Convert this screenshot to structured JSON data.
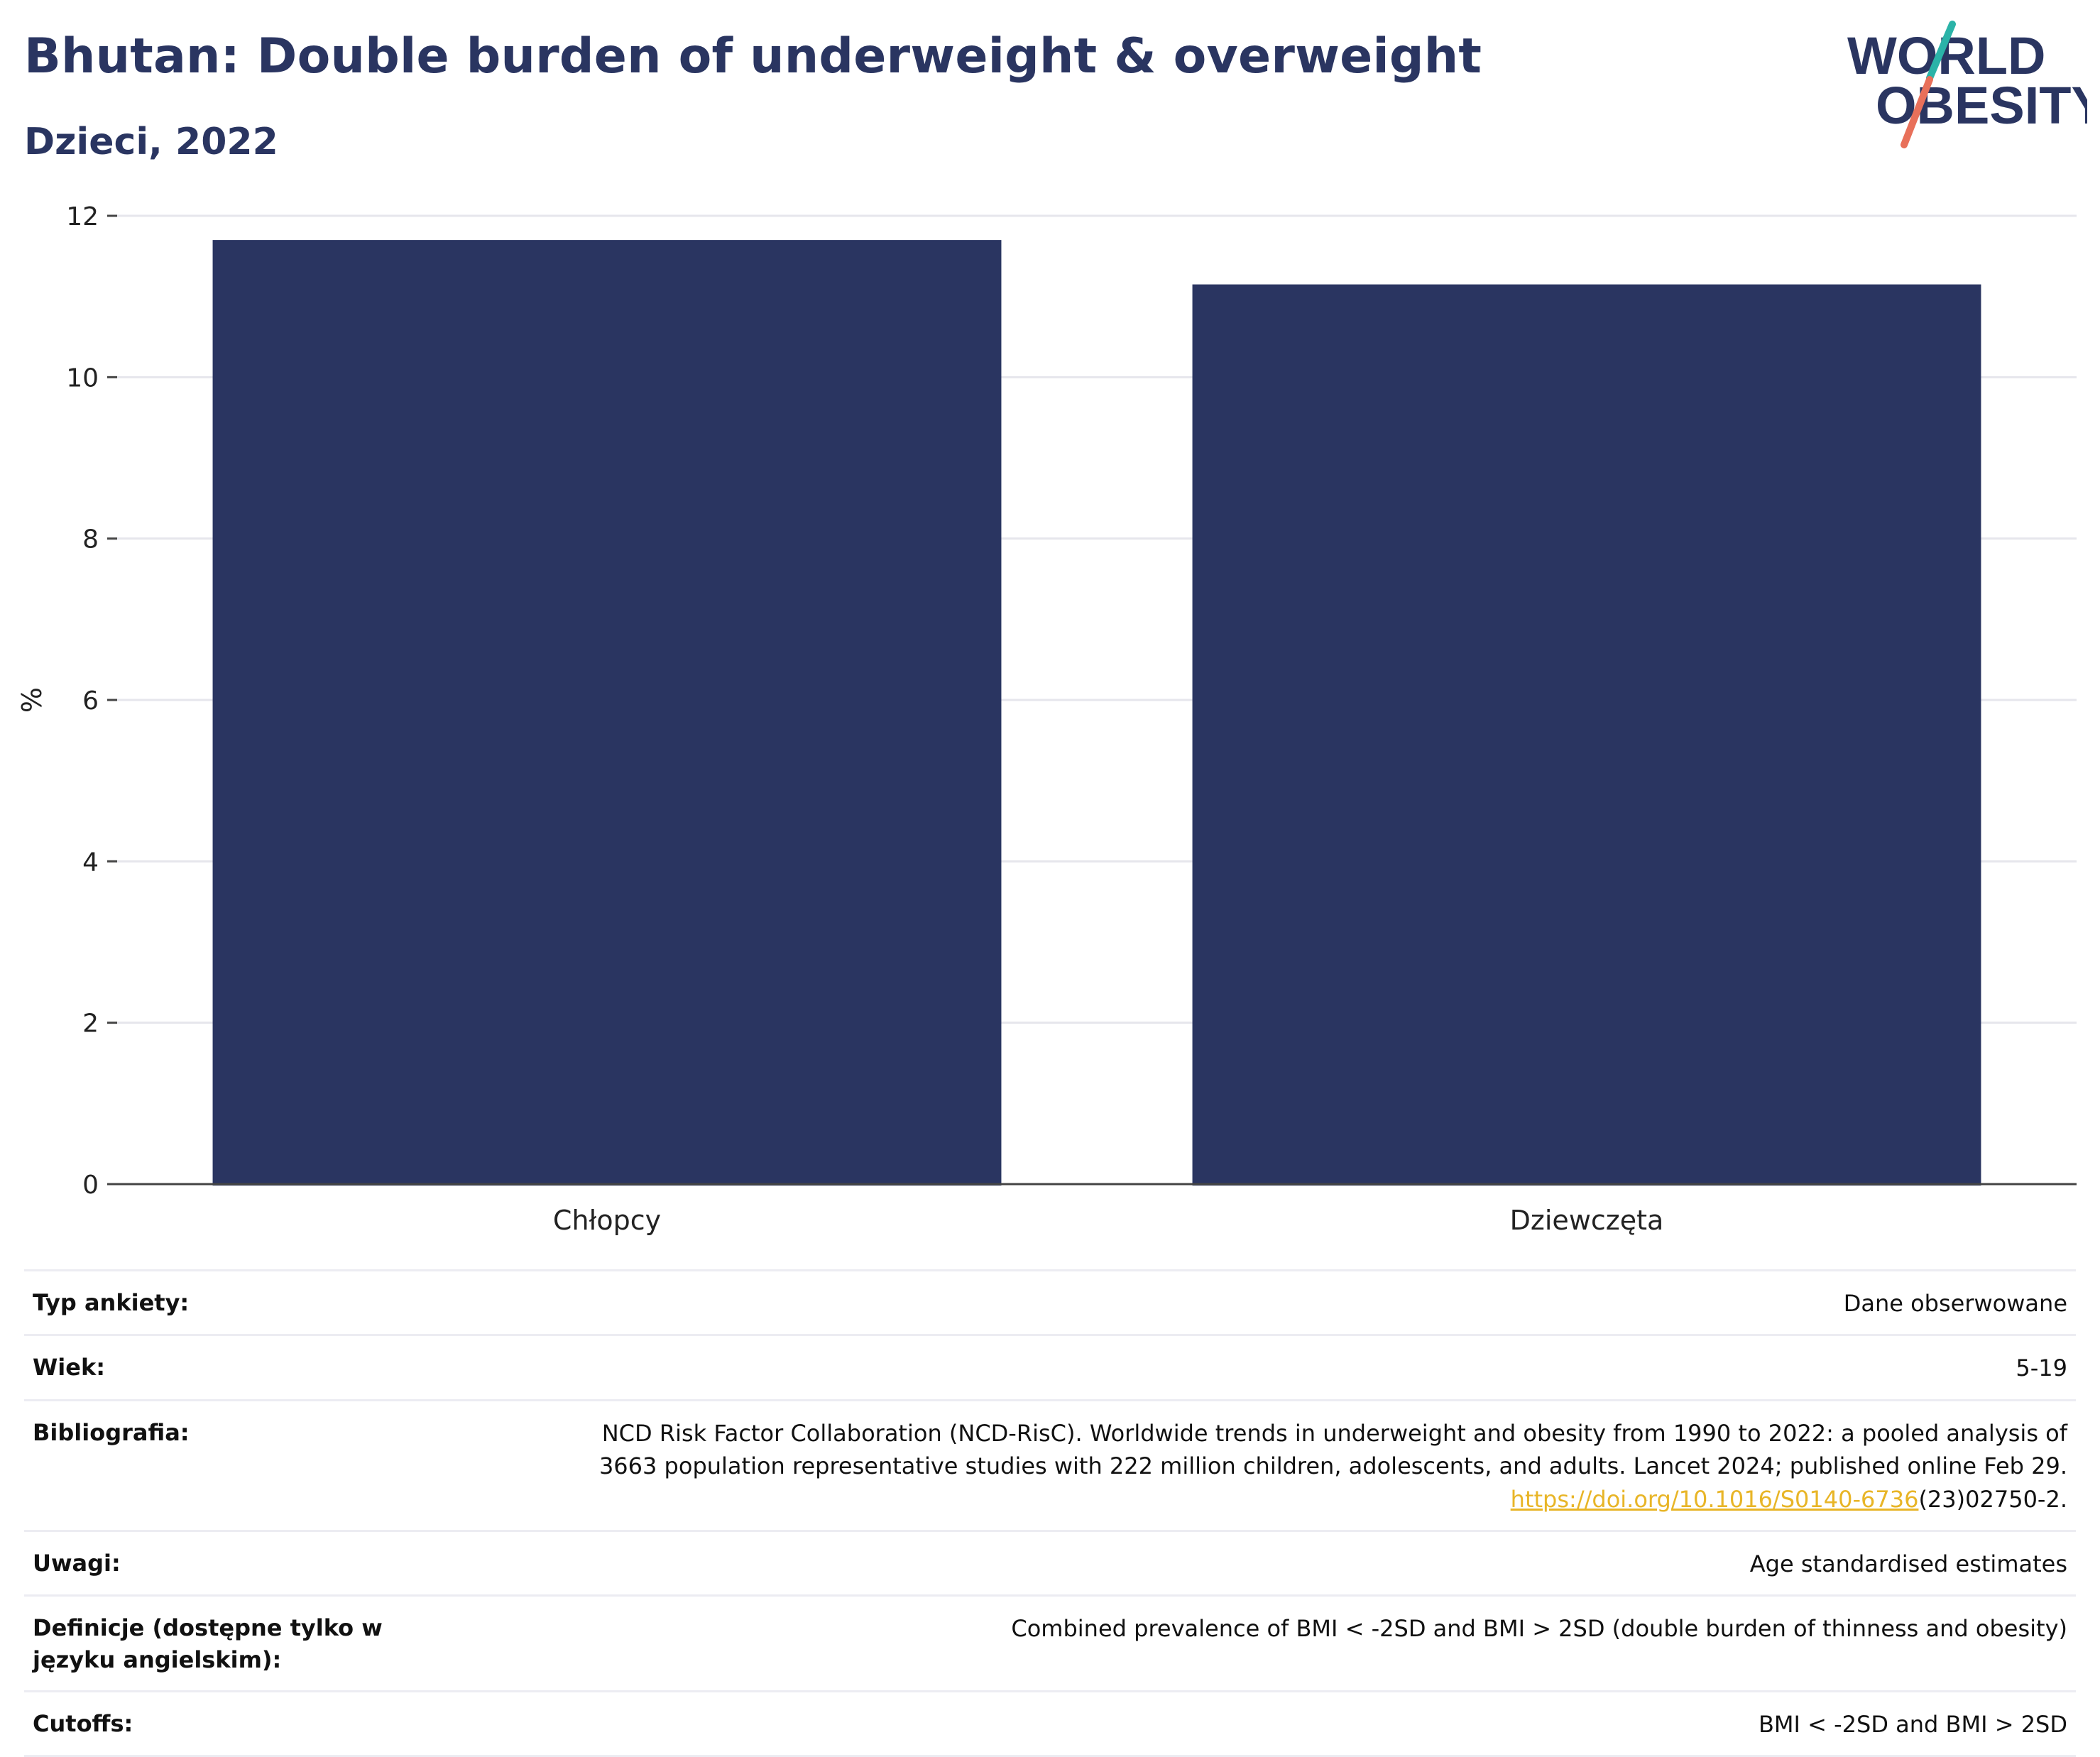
{
  "title": "Bhutan: Double burden of underweight & overweight",
  "subtitle": "Dzieci, 2022",
  "logo": {
    "line1": "WORLD",
    "line2": "OBESITY",
    "colors": {
      "teal": "#2bb3a8",
      "coral": "#e8705a",
      "navy": "#2a3561"
    }
  },
  "chart_data": {
    "type": "bar",
    "categories": [
      "Chłopcy",
      "Dziewczęta"
    ],
    "values": [
      11.7,
      11.15
    ],
    "ylabel": "%",
    "xlabel": "",
    "ylim": [
      0,
      12
    ],
    "yticks": [
      0,
      2,
      4,
      6,
      8,
      10,
      12
    ],
    "grid": true,
    "bar_color": "#2a3561"
  },
  "metadata": [
    {
      "label": "Typ ankiety:",
      "value": "Dane obserwowane"
    },
    {
      "label": "Wiek:",
      "value": "5-19"
    },
    {
      "label": "Bibliografia:",
      "value_line1": "NCD Risk Factor Collaboration (NCD-RisC). Worldwide trends in underweight and obesity from 1990 to 2022: a pooled analysis of",
      "value_line2": "3663 population representative studies with 222 million children, adolescents, and adults. Lancet 2024; published online Feb 29.",
      "link_text": "https://doi.org/10.1016/S0140-6736",
      "link_suffix": "(23)02750-2."
    },
    {
      "label": "Uwagi:",
      "value": "Age standardised estimates"
    },
    {
      "label": "Definicje (dostępne tylko w języku angielskim):",
      "value": "Combined prevalence of BMI < -2SD and BMI > 2SD (double burden of thinness and obesity)"
    },
    {
      "label": "Cutoffs:",
      "value": "BMI < -2SD and BMI > 2SD"
    }
  ]
}
